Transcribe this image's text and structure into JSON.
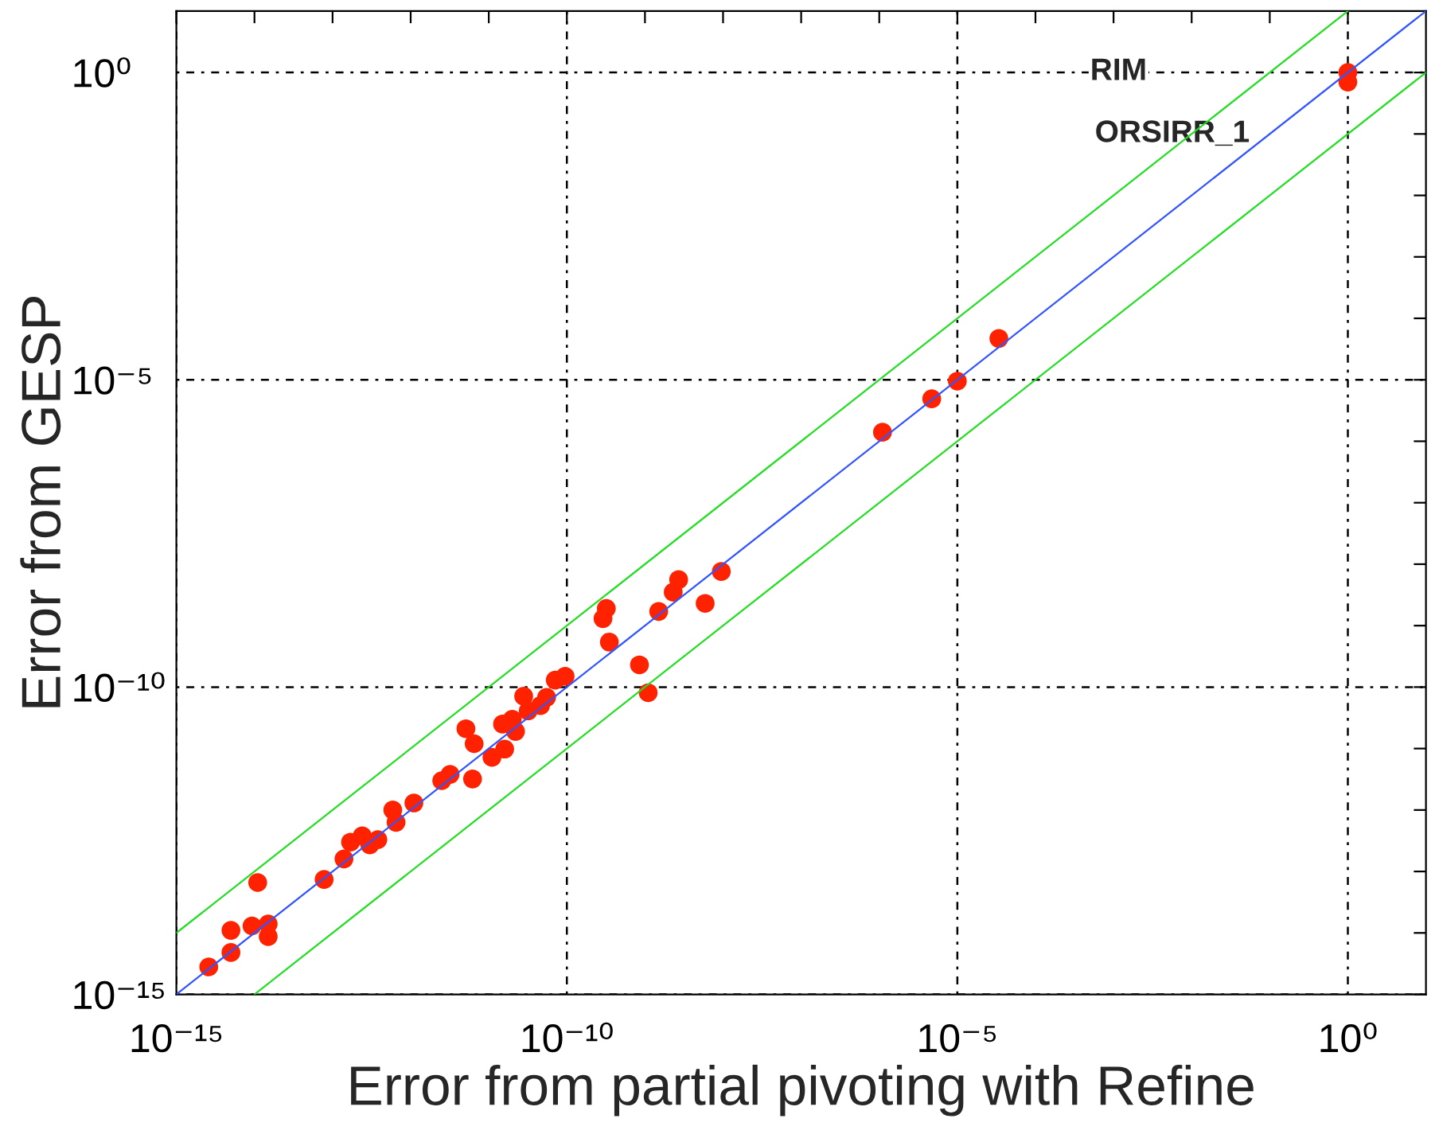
{
  "chart_data": {
    "type": "scatter",
    "xlabel": "Error from partial pivoting with Refine",
    "ylabel": "Error from GESP",
    "log": "xy",
    "xlim": [
      1e-15,
      10
    ],
    "ylim": [
      1e-15,
      10
    ],
    "xticks": [
      {
        "value": 1e-15,
        "label": "10⁻¹⁵"
      },
      {
        "value": 1e-14,
        "label": null
      },
      {
        "value": 1e-13,
        "label": null
      },
      {
        "value": 1e-12,
        "label": null
      },
      {
        "value": 1e-11,
        "label": null
      },
      {
        "value": 1e-10,
        "label": "10⁻¹⁰"
      },
      {
        "value": 1e-09,
        "label": null
      },
      {
        "value": 1e-08,
        "label": null
      },
      {
        "value": 1e-07,
        "label": null
      },
      {
        "value": 1e-06,
        "label": null
      },
      {
        "value": 1e-05,
        "label": "10⁻⁵"
      },
      {
        "value": 0.0001,
        "label": null
      },
      {
        "value": 0.001,
        "label": null
      },
      {
        "value": 0.01,
        "label": null
      },
      {
        "value": 0.1,
        "label": null
      },
      {
        "value": 1,
        "label": "10⁰"
      }
    ],
    "yticks": [
      {
        "value": 1e-15,
        "label": "10⁻¹⁵"
      },
      {
        "value": 1e-14,
        "label": null
      },
      {
        "value": 1e-13,
        "label": null
      },
      {
        "value": 1e-12,
        "label": null
      },
      {
        "value": 1e-11,
        "label": null
      },
      {
        "value": 1e-10,
        "label": "10⁻¹⁰"
      },
      {
        "value": 1e-09,
        "label": null
      },
      {
        "value": 1e-08,
        "label": null
      },
      {
        "value": 1e-07,
        "label": null
      },
      {
        "value": 1e-06,
        "label": null
      },
      {
        "value": 1e-05,
        "label": "10⁻⁵"
      },
      {
        "value": 0.0001,
        "label": null
      },
      {
        "value": 0.001,
        "label": null
      },
      {
        "value": 0.01,
        "label": null
      },
      {
        "value": 0.1,
        "label": null
      },
      {
        "value": 1,
        "label": "10⁰"
      }
    ],
    "grid": true,
    "line_style": "solid",
    "series": [
      {
        "color": "#ff2200",
        "marker": "circle",
        "x": [
          2.6e-15,
          5e-15,
          5e-15,
          1.1e-14,
          9.3e-15,
          1.5e-14,
          1.5e-14,
          7.8e-14,
          1.4e-13,
          1.7e-13,
          2.4e-13,
          3e-13,
          3.8e-13,
          5.9e-13,
          6.5e-13,
          1.1e-12,
          2.5e-12,
          3.2e-12,
          6.2e-12,
          5.1e-12,
          6.5e-12,
          1.1e-11,
          1.6e-11,
          1.5e-11,
          2.2e-11,
          2e-11,
          2.8e-11,
          3.2e-11,
          4.6e-11,
          5.5e-11,
          7.1e-11,
          9.5e-11,
          3.2e-10,
          2.9e-10,
          3.5e-10,
          8.5e-10,
          1.1e-09,
          1.5e-09,
          2.3e-09,
          2.7e-09,
          5.9e-09,
          9.5e-09,
          1.1e-06,
          4.7e-06,
          1e-05,
          3.4e-05,
          1,
          1
        ],
        "values": [
          2.8e-15,
          4.8e-15,
          1.1e-14,
          6.6e-14,
          1.3e-14,
          1.4e-14,
          8.7e-15,
          7.4e-14,
          1.6e-13,
          3e-13,
          3.8e-13,
          2.7e-13,
          3.3e-13,
          1e-12,
          6.3e-13,
          1.3e-12,
          3e-12,
          3.8e-12,
          3.2e-12,
          2.1e-11,
          1.2e-11,
          7.2e-12,
          9.8e-12,
          2.5e-11,
          1.9e-11,
          3e-11,
          7.1e-11,
          4.1e-11,
          5e-11,
          6.8e-11,
          1.3e-10,
          1.5e-10,
          1.9e-09,
          1.3e-09,
          5.4e-10,
          2.3e-10,
          8.1e-11,
          1.7e-09,
          3.5e-09,
          5.6e-09,
          2.3e-09,
          7.6e-09,
          1.4e-06,
          4.9e-06,
          9.5e-06,
          4.7e-05,
          1,
          0.7
        ]
      },
      {
        "type": "line",
        "color": "#3355ff",
        "x": [
          1e-15,
          10
        ],
        "values": [
          1e-15,
          10
        ]
      },
      {
        "type": "line",
        "color": "#22dd22",
        "x": [
          1e-15,
          1
        ],
        "values": [
          1e-14,
          10
        ]
      },
      {
        "type": "line",
        "color": "#22dd22",
        "x": [
          1e-14,
          10
        ],
        "values": [
          1e-15,
          1
        ]
      }
    ],
    "annotations": [
      "RIM",
      "ORSIRR_1"
    ]
  }
}
